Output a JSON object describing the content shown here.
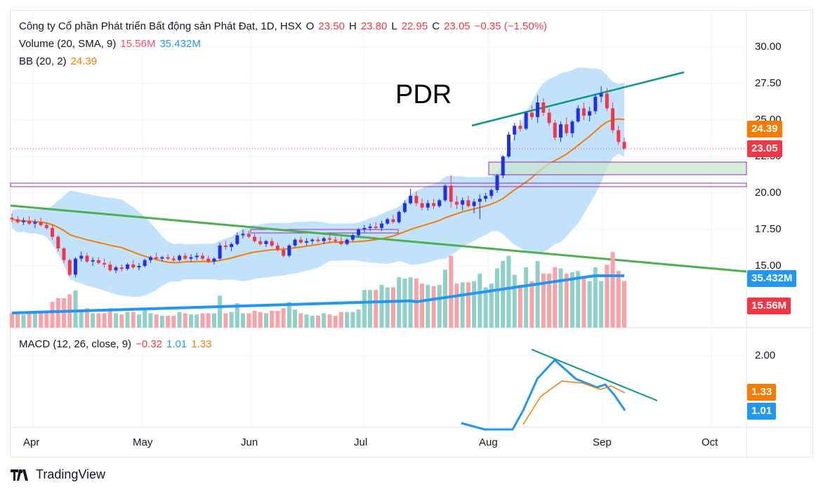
{
  "header": {
    "title": "Công ty Cổ phần Phát triển Bất động sản Phát Đạt, 1D, HSX",
    "open_label": "O",
    "open": "23.50",
    "high_label": "H",
    "high": "23.80",
    "low_label": "L",
    "low": "22.95",
    "close_label": "C",
    "close": "23.05",
    "change": "−0.35 (−1.50%)"
  },
  "volume_legend": {
    "label": "Volume (20, SMA, 9)",
    "short": "15.56M",
    "long": "35.432M"
  },
  "bb_legend": {
    "label": "BB (20, 2)",
    "value": "24.39"
  },
  "macd_legend": {
    "label": "MACD (12, 26, close, 9)",
    "hist": "−0.32",
    "macd": "1.01",
    "signal": "1.33"
  },
  "annotation": "PDR",
  "price_axis": [
    "30.00",
    "27.50",
    "25.00",
    "22.50",
    "20.00",
    "17.50",
    "15.00"
  ],
  "macd_axis": [
    "2.00"
  ],
  "time_axis": [
    "Apr",
    "May",
    "Jun",
    "Jul",
    "Aug",
    "Sep",
    "Oct"
  ],
  "tags": {
    "bb": "24.39",
    "close": "23.05",
    "vol_ma": "35.432M",
    "vol": "15.56M",
    "macd_signal": "1.33",
    "macd_line": "1.01"
  },
  "brand": "TradingView",
  "colors": {
    "up": "#2130e8",
    "down": "#f23645",
    "vol_up": "#8fd0c8",
    "vol_down": "#f7a3a8",
    "bb_fill": "#90caf9",
    "bb_basis": "#f57c00",
    "vol_ma": "#2196f3",
    "trend_green": "#4caf50",
    "trend_teal": "#089981"
  },
  "chart_data": {
    "type": "candlestick",
    "ticker": "PDR",
    "timeframe": "1D",
    "exchange": "HSX",
    "price_range": [
      14.0,
      31.0
    ],
    "last": {
      "open": 23.5,
      "high": 23.8,
      "low": 22.95,
      "close": 23.05,
      "change": -0.35,
      "change_pct": -1.5
    },
    "bollinger_basis_last": 24.39,
    "volume_sma_last": 35.432,
    "volume_last": 15.56,
    "macd_last": {
      "histogram": -0.32,
      "macd": 1.01,
      "signal": 1.33
    },
    "series": [
      {
        "name": "Volume (20, SMA, 9)",
        "values": [
          15.56,
          35.432
        ]
      },
      {
        "name": "BB (20, 2)",
        "values": [
          24.39
        ]
      },
      {
        "name": "MACD (12, 26, close, 9)",
        "values": [
          -0.32,
          1.01,
          1.33
        ]
      }
    ],
    "candles_approx": [
      [
        18.3,
        18.6,
        18.0,
        18.2
      ],
      [
        18.2,
        18.4,
        17.9,
        18.0
      ],
      [
        18.0,
        18.3,
        17.8,
        18.1
      ],
      [
        18.1,
        18.4,
        17.8,
        17.9
      ],
      [
        17.9,
        18.2,
        17.6,
        18.0
      ],
      [
        18.0,
        18.3,
        17.7,
        17.8
      ],
      [
        17.8,
        18.0,
        17.5,
        17.6
      ],
      [
        17.6,
        17.8,
        16.8,
        17.0
      ],
      [
        17.0,
        17.1,
        16.0,
        16.2
      ],
      [
        16.2,
        16.3,
        15.2,
        15.4
      ],
      [
        15.4,
        15.5,
        14.3,
        14.4
      ],
      [
        14.4,
        15.6,
        14.2,
        15.5
      ],
      [
        15.5,
        16.0,
        15.3,
        15.7
      ],
      [
        15.7,
        15.9,
        15.2,
        15.3
      ],
      [
        15.3,
        15.6,
        15.0,
        15.4
      ],
      [
        15.4,
        15.6,
        15.1,
        15.2
      ],
      [
        15.2,
        15.5,
        14.9,
        15.1
      ],
      [
        15.1,
        15.3,
        14.6,
        14.7
      ],
      [
        14.7,
        15.0,
        14.5,
        14.9
      ],
      [
        14.9,
        15.1,
        14.6,
        14.8
      ],
      [
        14.8,
        15.2,
        14.7,
        15.1
      ],
      [
        15.1,
        15.4,
        14.8,
        14.9
      ],
      [
        14.9,
        15.2,
        14.7,
        15.0
      ],
      [
        15.0,
        15.5,
        14.9,
        15.4
      ],
      [
        15.4,
        15.7,
        15.2,
        15.6
      ],
      [
        15.6,
        15.9,
        15.4,
        15.5
      ],
      [
        15.5,
        15.7,
        15.3,
        15.6
      ],
      [
        15.6,
        15.8,
        15.4,
        15.5
      ],
      [
        15.5,
        15.7,
        15.3,
        15.4
      ],
      [
        15.4,
        15.8,
        15.3,
        15.7
      ],
      [
        15.7,
        15.9,
        15.4,
        15.5
      ],
      [
        15.5,
        15.8,
        15.3,
        15.6
      ],
      [
        15.6,
        15.9,
        15.4,
        15.7
      ],
      [
        15.7,
        15.9,
        15.4,
        15.5
      ],
      [
        15.5,
        15.7,
        15.2,
        15.3
      ],
      [
        15.3,
        15.6,
        15.1,
        15.5
      ],
      [
        15.5,
        16.6,
        15.4,
        16.4
      ],
      [
        16.4,
        16.7,
        16.1,
        16.3
      ],
      [
        16.3,
        16.6,
        16.0,
        16.5
      ],
      [
        16.5,
        17.3,
        16.4,
        17.1
      ],
      [
        17.1,
        17.5,
        16.9,
        17.2
      ],
      [
        17.2,
        17.4,
        16.9,
        17.0
      ],
      [
        17.0,
        17.2,
        16.6,
        16.7
      ],
      [
        16.7,
        17.0,
        16.4,
        16.5
      ],
      [
        16.5,
        16.8,
        16.3,
        16.7
      ],
      [
        16.7,
        16.9,
        16.3,
        16.4
      ],
      [
        16.4,
        16.6,
        16.0,
        16.1
      ],
      [
        16.1,
        16.3,
        15.6,
        15.7
      ],
      [
        15.7,
        16.5,
        15.6,
        16.4
      ],
      [
        16.4,
        16.9,
        16.3,
        16.8
      ],
      [
        16.8,
        17.0,
        16.5,
        16.6
      ],
      [
        16.6,
        16.9,
        16.4,
        16.7
      ],
      [
        16.7,
        16.9,
        16.5,
        16.8
      ],
      [
        16.8,
        17.0,
        16.6,
        16.7
      ],
      [
        16.7,
        17.0,
        16.5,
        16.9
      ],
      [
        16.9,
        17.1,
        16.6,
        16.8
      ],
      [
        16.8,
        17.0,
        16.6,
        16.7
      ],
      [
        16.7,
        17.0,
        16.4,
        16.5
      ],
      [
        16.5,
        16.9,
        16.4,
        16.8
      ],
      [
        16.8,
        17.2,
        16.7,
        17.1
      ],
      [
        17.1,
        17.6,
        17.0,
        17.5
      ],
      [
        17.5,
        17.8,
        17.3,
        17.6
      ],
      [
        17.6,
        17.9,
        17.4,
        17.7
      ],
      [
        17.7,
        18.0,
        17.5,
        17.6
      ],
      [
        17.6,
        18.1,
        17.4,
        17.9
      ],
      [
        17.9,
        18.3,
        17.8,
        18.2
      ],
      [
        18.2,
        18.5,
        17.9,
        18.0
      ],
      [
        18.0,
        18.8,
        17.9,
        18.7
      ],
      [
        18.7,
        19.5,
        18.6,
        19.3
      ],
      [
        19.3,
        20.3,
        19.2,
        19.8
      ],
      [
        19.8,
        20.1,
        19.1,
        19.3
      ],
      [
        19.3,
        19.6,
        18.8,
        19.0
      ],
      [
        19.0,
        19.5,
        18.8,
        19.3
      ],
      [
        19.3,
        19.6,
        18.9,
        19.1
      ],
      [
        19.1,
        19.6,
        19.0,
        19.5
      ],
      [
        19.5,
        20.6,
        19.4,
        20.5
      ],
      [
        20.5,
        21.2,
        19.0,
        19.4
      ],
      [
        19.4,
        19.8,
        18.9,
        19.2
      ],
      [
        19.2,
        19.7,
        18.8,
        19.5
      ],
      [
        19.5,
        19.8,
        19.0,
        19.1
      ],
      [
        19.1,
        19.6,
        18.6,
        19.4
      ],
      [
        19.4,
        19.9,
        18.2,
        19.6
      ],
      [
        19.6,
        20.0,
        19.4,
        19.8
      ],
      [
        19.8,
        20.3,
        19.6,
        20.2
      ],
      [
        20.2,
        21.3,
        20.0,
        21.2
      ],
      [
        21.2,
        22.6,
        21.0,
        22.5
      ],
      [
        22.5,
        24.2,
        22.4,
        24.0
      ],
      [
        24.0,
        24.8,
        23.6,
        24.6
      ],
      [
        24.6,
        25.0,
        24.2,
        24.4
      ],
      [
        24.4,
        25.6,
        24.3,
        25.5
      ],
      [
        25.5,
        26.0,
        25.0,
        25.2
      ],
      [
        25.2,
        26.7,
        24.8,
        26.2
      ],
      [
        26.2,
        26.5,
        25.3,
        25.5
      ],
      [
        25.5,
        25.8,
        24.6,
        24.8
      ],
      [
        24.8,
        25.0,
        23.6,
        23.8
      ],
      [
        23.8,
        24.9,
        23.5,
        24.7
      ],
      [
        24.7,
        25.2,
        23.9,
        24.1
      ],
      [
        24.1,
        25.0,
        23.8,
        24.9
      ],
      [
        24.9,
        26.0,
        24.8,
        25.8
      ],
      [
        25.8,
        26.2,
        25.0,
        25.3
      ],
      [
        25.3,
        25.9,
        24.9,
        25.6
      ],
      [
        25.6,
        26.8,
        25.4,
        26.6
      ],
      [
        26.6,
        27.3,
        26.2,
        26.8
      ],
      [
        26.8,
        27.2,
        25.6,
        25.8
      ],
      [
        25.8,
        26.2,
        24.1,
        24.3
      ],
      [
        24.3,
        24.6,
        23.3,
        23.5
      ],
      [
        23.5,
        23.8,
        22.95,
        23.05
      ]
    ]
  }
}
